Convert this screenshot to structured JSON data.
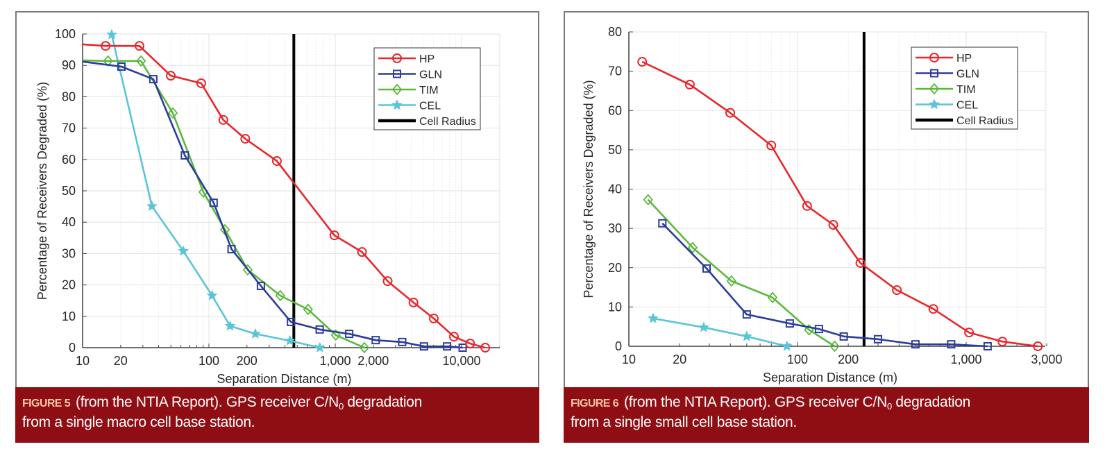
{
  "chart_data": [
    {
      "type": "line",
      "id": "figure5",
      "title": "",
      "xlabel": "Separation Distance (m)",
      "ylabel": "Percentage of Receivers Degraded (%)",
      "xscale": "log",
      "xlim": [
        10,
        20000
      ],
      "ylim": [
        0,
        100
      ],
      "xticks": [
        10,
        20,
        100,
        200,
        1000,
        2000,
        10000
      ],
      "xtick_labels": [
        "10",
        "20",
        "100",
        "200",
        "1,000",
        "2,000",
        "10,000"
      ],
      "yticks": [
        0,
        10,
        20,
        30,
        40,
        50,
        60,
        70,
        80,
        90,
        100
      ],
      "ytick_labels": [
        "0",
        "10",
        "20",
        "30",
        "40",
        "50",
        "60",
        "70",
        "80",
        "90",
        "100"
      ],
      "grid": true,
      "legend_position": "top-right",
      "series": [
        {
          "name": "HP",
          "color": "#e8262b",
          "marker": "circle",
          "x": [
            10,
            15.2,
            28.2,
            49.9,
            86.9,
            130,
            194,
            345,
            985,
            1630,
            2600,
            4160,
            6030,
            8700,
            11700,
            15400
          ],
          "y": [
            96.7,
            96.2,
            96.2,
            86.7,
            84.3,
            72.6,
            66.6,
            59.5,
            35.8,
            30.5,
            21.2,
            14.4,
            9.3,
            3.5,
            1.3,
            0
          ],
          "marker_from_index": 1
        },
        {
          "name": "GLN",
          "color": "#2b3c9c",
          "marker": "square",
          "x": [
            10,
            20.3,
            36.3,
            64.5,
            109,
            151,
            258,
            446,
            753,
            1290,
            2090,
            3390,
            5040,
            7680,
            10200
          ],
          "y": [
            91.2,
            89.6,
            85.6,
            61.3,
            46.2,
            31.4,
            19.7,
            8.2,
            5.8,
            4.4,
            2.4,
            1.8,
            0.4,
            0.4,
            0
          ],
          "marker_from_index": 1
        },
        {
          "name": "TIM",
          "color": "#5cb83c",
          "marker": "diamond",
          "x": [
            10,
            15.9,
            29,
            51.8,
            90.4,
            134,
            203,
            367,
            609,
            1010,
            1700
          ],
          "y": [
            91.6,
            91.4,
            91.4,
            74.8,
            49.6,
            37.6,
            24.8,
            16.6,
            12.2,
            4.0,
            0
          ],
          "marker_from_index": 1
        },
        {
          "name": "CEL",
          "color": "#5bc4d6",
          "marker": "star",
          "x": [
            17,
            35.4,
            62.7,
            106,
            147,
            233,
            437,
            755
          ],
          "y": [
            99.8,
            45.1,
            30.8,
            16.6,
            6.9,
            4.4,
            2.2,
            0
          ],
          "marker_from_index": 0
        }
      ],
      "reference_lines": [
        {
          "name": "Cell Radius",
          "color": "#000000",
          "x": 470
        }
      ],
      "caption": {
        "label": "FIGURE 5",
        "text_before_sub": "(from the NTIA Report). GPS receiver C/N",
        "sub": "0",
        "text_after_sub": " degradation",
        "line2": "from a single macro cell base station."
      }
    },
    {
      "type": "line",
      "id": "figure6",
      "title": "",
      "xlabel": "Separation Distance (m)",
      "ylabel": "Percentage of Receivers Degraded (%)",
      "xscale": "log",
      "xlim": [
        10,
        3000
      ],
      "ylim": [
        0,
        80
      ],
      "xticks": [
        10,
        20,
        100,
        200,
        1000,
        3000
      ],
      "xtick_labels": [
        "10",
        "20",
        "100",
        "200",
        "1,000",
        "3,000"
      ],
      "yticks": [
        0,
        10,
        20,
        30,
        40,
        50,
        60,
        70,
        80
      ],
      "ytick_labels": [
        "0",
        "10",
        "20",
        "30",
        "40",
        "50",
        "60",
        "70",
        "80"
      ],
      "grid": true,
      "legend_position": "top-right",
      "series": [
        {
          "name": "HP",
          "color": "#e8262b",
          "marker": "circle",
          "x": [
            12.0,
            23.0,
            39.9,
            69.9,
            114,
            163,
            236,
            388,
            639,
            1040,
            1640,
            2660
          ],
          "y": [
            72.4,
            66.6,
            59.4,
            51.1,
            35.7,
            30.9,
            21.2,
            14.3,
            9.5,
            3.5,
            1.2,
            0
          ],
          "marker_from_index": 0
        },
        {
          "name": "GLN",
          "color": "#2b3c9c",
          "marker": "square",
          "x": [
            15.8,
            28.9,
            50.0,
            90.0,
            134,
            188,
            300,
            500,
            815,
            1340
          ],
          "y": [
            31.3,
            19.8,
            8.1,
            5.8,
            4.4,
            2.5,
            1.8,
            0.5,
            0.5,
            0
          ],
          "marker_from_index": 0
        },
        {
          "name": "TIM",
          "color": "#5cb83c",
          "marker": "diamond",
          "x": [
            13.0,
            23.9,
            40.6,
            71.1,
            117,
            166
          ],
          "y": [
            37.3,
            25.1,
            16.6,
            12.4,
            4.2,
            0
          ],
          "marker_from_index": 0
        },
        {
          "name": "CEL",
          "color": "#5bc4d6",
          "marker": "star",
          "x": [
            13.9,
            27.8,
            50.0,
            86.6
          ],
          "y": [
            7.1,
            4.8,
            2.5,
            0
          ],
          "marker_from_index": 0
        }
      ],
      "reference_lines": [
        {
          "name": "Cell Radius",
          "color": "#000000",
          "x": 248
        }
      ],
      "caption": {
        "label": "FIGURE 6",
        "text_before_sub": "(from the NTIA Report). GPS receiver C/N",
        "sub": "0",
        "text_after_sub": " degradation",
        "line2": "from a single small cell base station."
      }
    }
  ]
}
